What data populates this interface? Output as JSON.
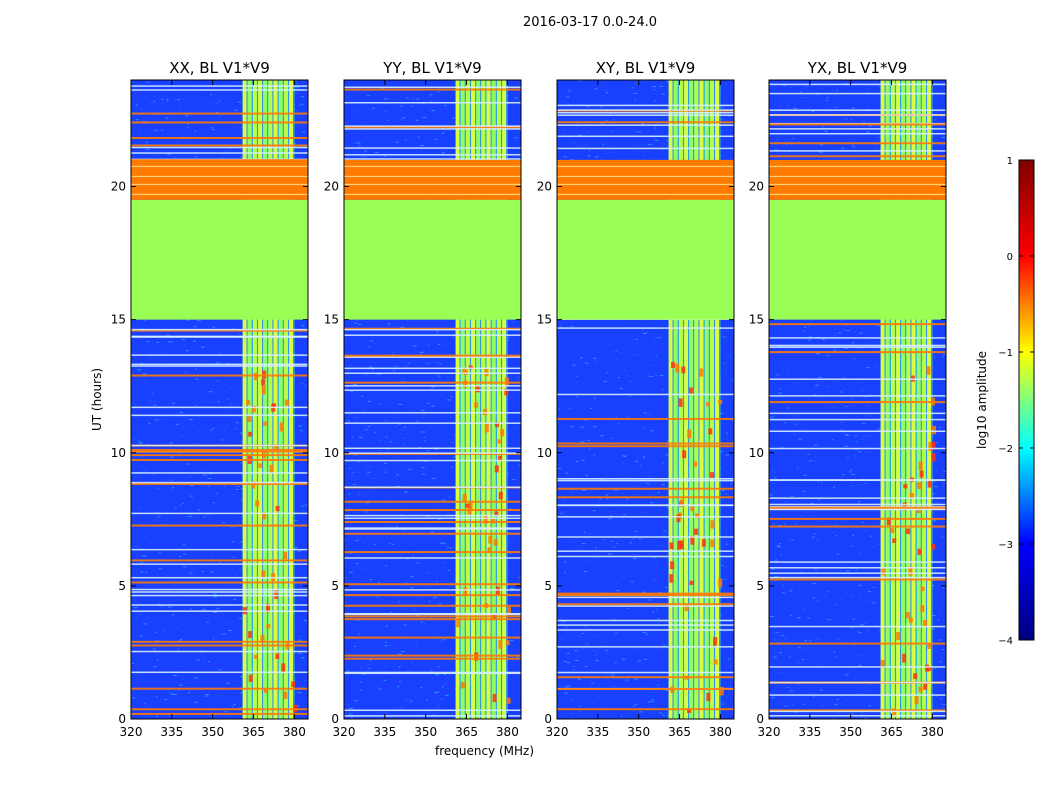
{
  "figure": {
    "suptitle": "2016-03-17 0.0-24.0"
  },
  "colors": {
    "noise_base": "#1a40ff",
    "noise_light": "#1f6bff",
    "noise_cyan": "#33ccff",
    "flag_green": "#99ff55",
    "flag_orange": "#ff7a00",
    "rfi_yellow": "#e8ff33",
    "rfi_red": "#ff3311",
    "stripe_white": "#d8f0ff"
  },
  "chart_data": {
    "type": "heatmap",
    "xlabel": "frequency (MHz)",
    "ylabel": "UT (hours)",
    "xlim": [
      320,
      385
    ],
    "ylim": [
      0,
      24
    ],
    "xticks": [
      320,
      335,
      350,
      365,
      380
    ],
    "yticks": [
      0,
      5,
      10,
      15,
      20
    ],
    "panels": [
      {
        "title": "XX, BL V1*V9",
        "show_ylabel": true,
        "show_xlabel": false
      },
      {
        "title": "YY, BL V1*V9",
        "show_ylabel": false,
        "show_xlabel": true
      },
      {
        "title": "XY, BL V1*V9",
        "show_ylabel": false,
        "show_xlabel": false
      },
      {
        "title": "YX, BL V1*V9",
        "show_ylabel": false,
        "show_xlabel": false
      }
    ],
    "flagged_regions": [
      {
        "from_ut": 15.0,
        "to_ut": 19.5,
        "level": "green"
      },
      {
        "from_ut": 19.5,
        "to_ut": 21.0,
        "level": "orange"
      }
    ],
    "rfi_band": {
      "from_mhz": 361,
      "to_mhz": 380
    },
    "colorbar": {
      "label": "log10 amplitude",
      "min": -4,
      "max": 1,
      "ticks": [
        1,
        0,
        -1,
        -2,
        -3,
        -4
      ],
      "tick_labels": [
        "1",
        "0",
        "−1",
        "−2",
        "−3",
        "−4"
      ],
      "stops": [
        "#00007f",
        "#0000ff",
        "#00ffff",
        "#ffff00",
        "#ff0000",
        "#7f0000"
      ]
    }
  }
}
